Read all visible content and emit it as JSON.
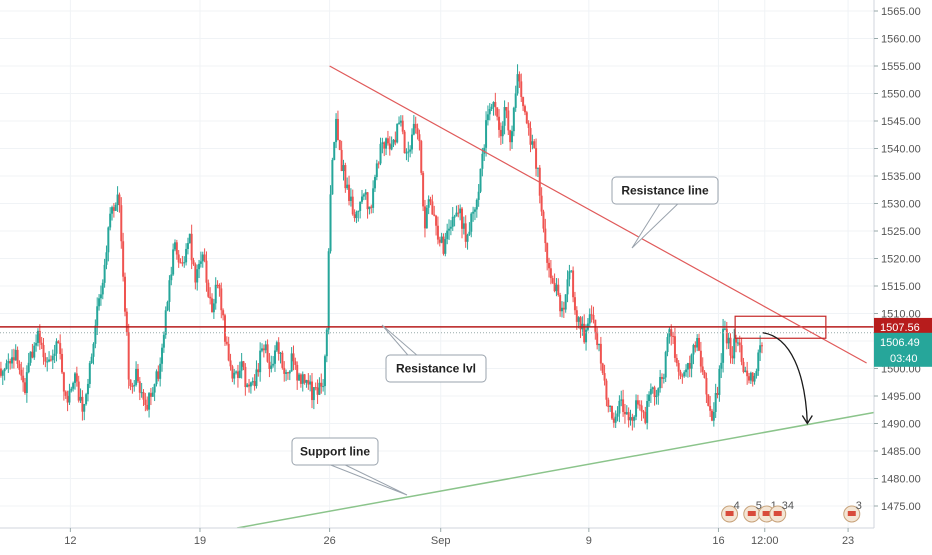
{
  "chart_data": {
    "type": "candlestick",
    "title": "",
    "xlabel": "",
    "ylabel": "",
    "ylim": [
      1471,
      1567
    ],
    "y_ticks": [
      "1565.00",
      "1560.00",
      "1555.00",
      "1550.00",
      "1545.00",
      "1540.00",
      "1535.00",
      "1530.00",
      "1525.00",
      "1520.00",
      "1515.00",
      "1510.00",
      "1505.00",
      "1500.00",
      "1495.00",
      "1490.00",
      "1485.00",
      "1480.00",
      "1475.00"
    ],
    "x_ticks": [
      {
        "label": "12",
        "t": 12
      },
      {
        "label": "19",
        "t": 19
      },
      {
        "label": "26",
        "t": 26
      },
      {
        "label": "Sep",
        "t": 32
      },
      {
        "label": "9",
        "t": 40
      },
      {
        "label": "16",
        "t": 47
      },
      {
        "label": "12:00",
        "t": 49.5
      },
      {
        "label": "23",
        "t": 54
      }
    ],
    "x_range": [
      8.2,
      55.4
    ],
    "colors": {
      "up": "#26a69a",
      "down": "#ef5350",
      "resistance": "#e05a5a",
      "support": "#8bc48b",
      "level": "#b71c1c",
      "arrow": "#1a1a1a",
      "current": "#26a69a"
    },
    "price_path": [
      [
        8.2,
        1500
      ],
      [
        9.0,
        1503
      ],
      [
        9.5,
        1496
      ],
      [
        10.2,
        1507
      ],
      [
        10.8,
        1500
      ],
      [
        11.3,
        1505
      ],
      [
        11.8,
        1493
      ],
      [
        12.2,
        1499
      ],
      [
        12.7,
        1491
      ],
      [
        13.1,
        1502
      ],
      [
        13.5,
        1512
      ],
      [
        13.8,
        1518
      ],
      [
        14.2,
        1528
      ],
      [
        14.6,
        1532
      ],
      [
        14.9,
        1515
      ],
      [
        15.2,
        1496
      ],
      [
        15.6,
        1500
      ],
      [
        16.0,
        1492
      ],
      [
        16.5,
        1497
      ],
      [
        16.9,
        1501
      ],
      [
        17.2,
        1512
      ],
      [
        17.6,
        1522
      ],
      [
        18.0,
        1518
      ],
      [
        18.4,
        1524
      ],
      [
        18.8,
        1516
      ],
      [
        19.2,
        1520
      ],
      [
        19.6,
        1511
      ],
      [
        20.0,
        1516
      ],
      [
        20.4,
        1505
      ],
      [
        20.8,
        1498
      ],
      [
        21.2,
        1501
      ],
      [
        21.6,
        1495
      ],
      [
        22.0,
        1498
      ],
      [
        22.4,
        1505
      ],
      [
        22.8,
        1500
      ],
      [
        23.2,
        1504
      ],
      [
        23.6,
        1499
      ],
      [
        24.0,
        1502
      ],
      [
        24.4,
        1497
      ],
      [
        24.8,
        1499
      ],
      [
        25.1,
        1495
      ],
      [
        25.6,
        1497
      ],
      [
        25.8,
        1502
      ],
      [
        26.0,
        1528
      ],
      [
        26.3,
        1545
      ],
      [
        26.6,
        1538
      ],
      [
        27.0,
        1532
      ],
      [
        27.4,
        1527
      ],
      [
        27.8,
        1533
      ],
      [
        28.2,
        1528
      ],
      [
        28.6,
        1538
      ],
      [
        29.0,
        1542
      ],
      [
        29.4,
        1540
      ],
      [
        29.8,
        1545
      ],
      [
        30.2,
        1538
      ],
      [
        30.6,
        1545
      ],
      [
        30.9,
        1540
      ],
      [
        31.1,
        1526
      ],
      [
        31.4,
        1530
      ],
      [
        31.8,
        1525
      ],
      [
        32.2,
        1522
      ],
      [
        32.6,
        1526
      ],
      [
        33.0,
        1528
      ],
      [
        33.4,
        1524
      ],
      [
        33.8,
        1529
      ],
      [
        34.1,
        1534
      ],
      [
        34.5,
        1545
      ],
      [
        34.9,
        1548
      ],
      [
        35.2,
        1541
      ],
      [
        35.5,
        1547
      ],
      [
        35.8,
        1541
      ],
      [
        36.1,
        1553
      ],
      [
        36.4,
        1550
      ],
      [
        36.8,
        1543
      ],
      [
        37.2,
        1537
      ],
      [
        37.5,
        1528
      ],
      [
        37.8,
        1519
      ],
      [
        38.2,
        1515
      ],
      [
        38.6,
        1510
      ],
      [
        39.0,
        1518
      ],
      [
        39.4,
        1508
      ],
      [
        39.8,
        1506
      ],
      [
        40.2,
        1510
      ],
      [
        40.6,
        1502
      ],
      [
        41.0,
        1495
      ],
      [
        41.4,
        1491
      ],
      [
        41.8,
        1494
      ],
      [
        42.2,
        1490
      ],
      [
        42.6,
        1493
      ],
      [
        43.0,
        1491
      ],
      [
        43.4,
        1496
      ],
      [
        43.8,
        1497
      ],
      [
        44.1,
        1500
      ],
      [
        44.4,
        1509
      ],
      [
        44.7,
        1500
      ],
      [
        45.0,
        1497
      ],
      [
        45.4,
        1500
      ],
      [
        45.8,
        1505
      ],
      [
        46.2,
        1500
      ],
      [
        46.6,
        1490
      ],
      [
        47.0,
        1497
      ],
      [
        47.3,
        1508
      ],
      [
        47.7,
        1503
      ],
      [
        48.0,
        1505
      ],
      [
        48.4,
        1499
      ],
      [
        48.8,
        1498
      ],
      [
        49.2,
        1502
      ],
      [
        49.4,
        1506.5
      ]
    ],
    "resistance_line": {
      "label": "Resistance line",
      "points": [
        [
          26.0,
          1555
        ],
        [
          55.0,
          1501
        ]
      ]
    },
    "support_line": {
      "label": "Support line",
      "points": [
        [
          21.0,
          1471
        ],
        [
          55.4,
          1492
        ]
      ]
    },
    "resistance_level": {
      "label": "Resistance lvl",
      "value": 1507.56,
      "display": "1507.56"
    },
    "current_price": {
      "value": 1506.49,
      "display": "1506.49",
      "countdown": "03:40"
    },
    "forecast_arrow": {
      "from": [
        49.4,
        1506.5
      ],
      "to": [
        51.8,
        1490
      ]
    },
    "highlight_box": {
      "t": [
        47.9,
        52.8
      ],
      "y": [
        1505.5,
        1509.5
      ]
    },
    "event_markers": [
      "4",
      "5",
      "1",
      "34",
      "3"
    ]
  }
}
